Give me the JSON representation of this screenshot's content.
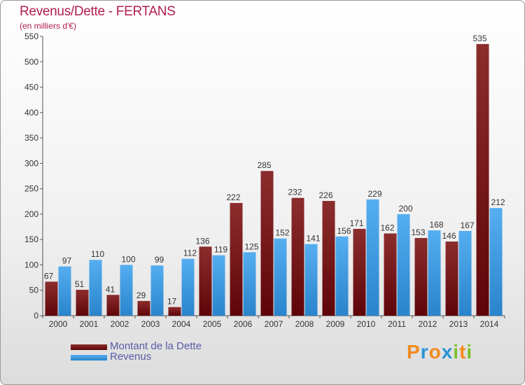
{
  "title": "Revenus/Dette - FERTANS",
  "subtitle": "(en milliers d'€)",
  "legend": [
    {
      "label": "Montant de la Dette",
      "color": "#6b0b0d"
    },
    {
      "label": "Revenus",
      "color": "#3d9be0"
    }
  ],
  "logo": {
    "letters": [
      "P",
      "r",
      "o",
      "x",
      "i",
      "t",
      "i"
    ],
    "colors": [
      "#f28a1e",
      "#2a93d5",
      "#f28a1e",
      "#2a93d5",
      "#7cbf2c",
      "#f28a1e",
      "#7cbf2c"
    ]
  },
  "chart_data": {
    "type": "bar",
    "categories": [
      "2000",
      "2001",
      "2002",
      "2003",
      "2004",
      "2005",
      "2006",
      "2007",
      "2008",
      "2009",
      "2010",
      "2011",
      "2012",
      "2013",
      "2014"
    ],
    "series": [
      {
        "name": "Montant de la Dette",
        "values": [
          67,
          51,
          41,
          29,
          17,
          136,
          222,
          285,
          232,
          226,
          171,
          162,
          153,
          146,
          535
        ]
      },
      {
        "name": "Revenus",
        "values": [
          97,
          110,
          100,
          99,
          112,
          119,
          125,
          152,
          141,
          156,
          229,
          200,
          168,
          167,
          212
        ]
      }
    ],
    "yticks": [
      0,
      50,
      100,
      150,
      200,
      250,
      300,
      350,
      400,
      450,
      500,
      550
    ],
    "ylim": [
      0,
      550
    ],
    "grid": false,
    "legend_position": "bottom-left"
  }
}
